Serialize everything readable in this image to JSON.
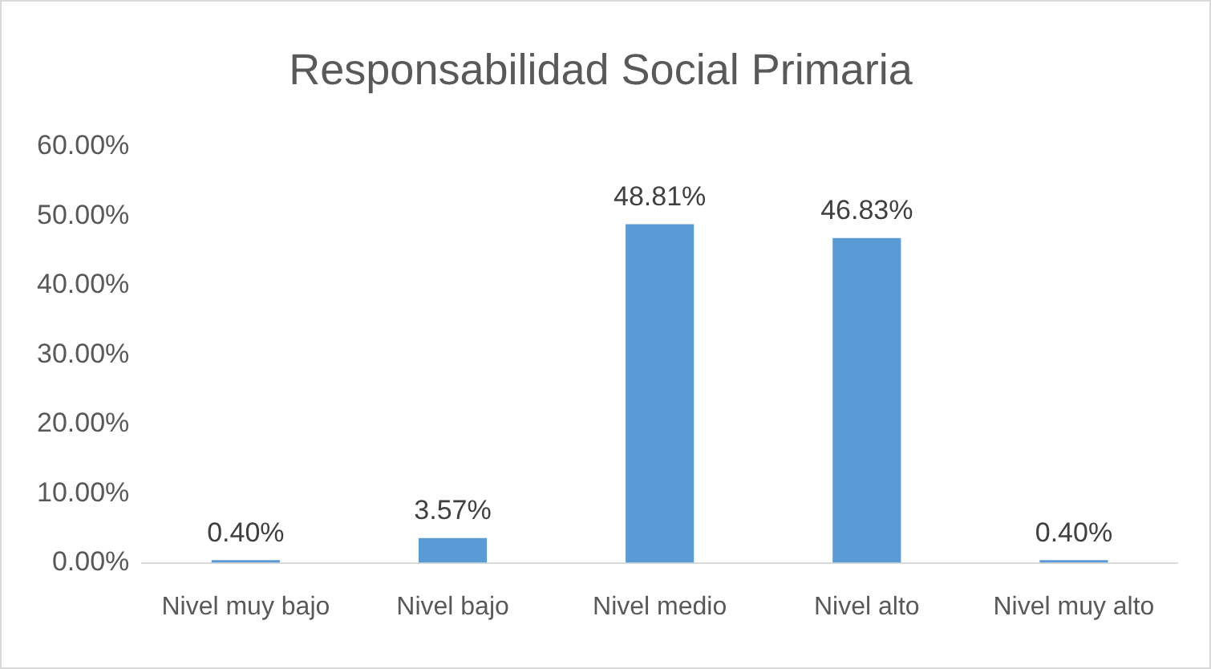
{
  "chart_data": {
    "type": "bar",
    "title": "Responsabilidad Social Primaria",
    "categories": [
      "Nivel muy bajo",
      "Nivel bajo",
      "Nivel medio",
      "Nivel alto",
      "Nivel muy alto"
    ],
    "values": [
      0.4,
      3.57,
      48.81,
      46.83,
      0.4
    ],
    "color": "#5b9bd5",
    "value_labels": [
      "0.40%",
      "3.57%",
      "48.81%",
      "46.83%",
      "0.40%"
    ],
    "ylim": [
      0,
      60
    ],
    "yticks": [
      {
        "value": 0,
        "label": "0.00%"
      },
      {
        "value": 10,
        "label": "10.00%"
      },
      {
        "value": 20,
        "label": "20.00%"
      },
      {
        "value": 30,
        "label": "30.00%"
      },
      {
        "value": 40,
        "label": "40.00%"
      },
      {
        "value": 50,
        "label": "50.00%"
      },
      {
        "value": 60,
        "label": "60.00%"
      }
    ],
    "grid": false,
    "legend": false
  }
}
